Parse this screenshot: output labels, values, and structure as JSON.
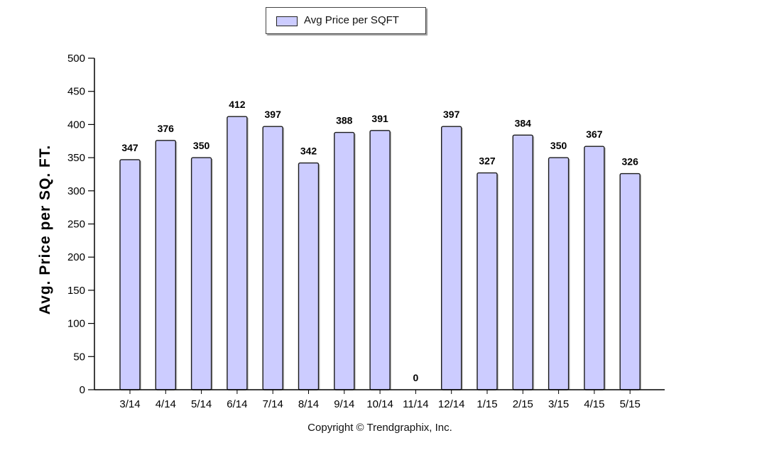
{
  "chart_data": {
    "type": "bar",
    "title": "",
    "xlabel": "",
    "ylabel": "Avg. Price per SQ. FT.",
    "ylim": [
      0,
      500
    ],
    "yticks": [
      0,
      50,
      100,
      150,
      200,
      250,
      300,
      350,
      400,
      450,
      500
    ],
    "categories": [
      "3/14",
      "4/14",
      "5/14",
      "6/14",
      "7/14",
      "8/14",
      "9/14",
      "10/14",
      "11/14",
      "12/14",
      "1/15",
      "2/15",
      "3/15",
      "4/15",
      "5/15"
    ],
    "series": [
      {
        "name": "Avg Price per SQFT",
        "color": "#ccccff",
        "values": [
          347,
          376,
          350,
          412,
          397,
          342,
          388,
          391,
          0,
          397,
          327,
          384,
          350,
          367,
          326
        ],
        "labels": [
          "347",
          "376",
          "350",
          "412",
          "397",
          "342",
          "388",
          "391",
          "0",
          "397",
          "327",
          "384",
          "350",
          "367",
          "326"
        ]
      }
    ],
    "legend": {
      "position": "top-center",
      "label": "Avg Price per SQFT"
    },
    "grid": false
  },
  "footer": {
    "copyright": "Copyright © Trendgraphix, Inc."
  }
}
